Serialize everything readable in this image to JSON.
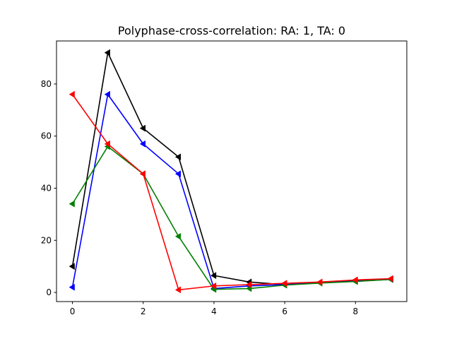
{
  "chart_data": {
    "type": "line",
    "title": "Polyphase-cross-correlation: RA: 1, TA: 0",
    "xlabel": "",
    "ylabel": "",
    "x": [
      0,
      1,
      2,
      3,
      4,
      5,
      6,
      7,
      8,
      9
    ],
    "xlim": [
      -0.45,
      9.45
    ],
    "ylim": [
      -3.5,
      96.5
    ],
    "xticks": [
      0,
      2,
      4,
      6,
      8
    ],
    "yticks": [
      0,
      20,
      40,
      60,
      80
    ],
    "grid": false,
    "marker": "left-triangle",
    "series": [
      {
        "color": "#000000",
        "values": [
          10,
          92,
          63,
          52,
          6.5,
          4,
          3,
          3.8,
          4.5,
          5
        ]
      },
      {
        "color": "#0000ff",
        "values": [
          2,
          76,
          57,
          45.5,
          1.5,
          2.5,
          3,
          3.7,
          4.3,
          5
        ]
      },
      {
        "color": "#008000",
        "values": [
          34,
          56,
          45.5,
          21.5,
          1.2,
          1.5,
          2.8,
          3.6,
          4.2,
          5
        ]
      },
      {
        "color": "#ff0000",
        "values": [
          76,
          57,
          45.5,
          1,
          2.5,
          3,
          3.5,
          4,
          4.8,
          5.3
        ]
      }
    ]
  }
}
